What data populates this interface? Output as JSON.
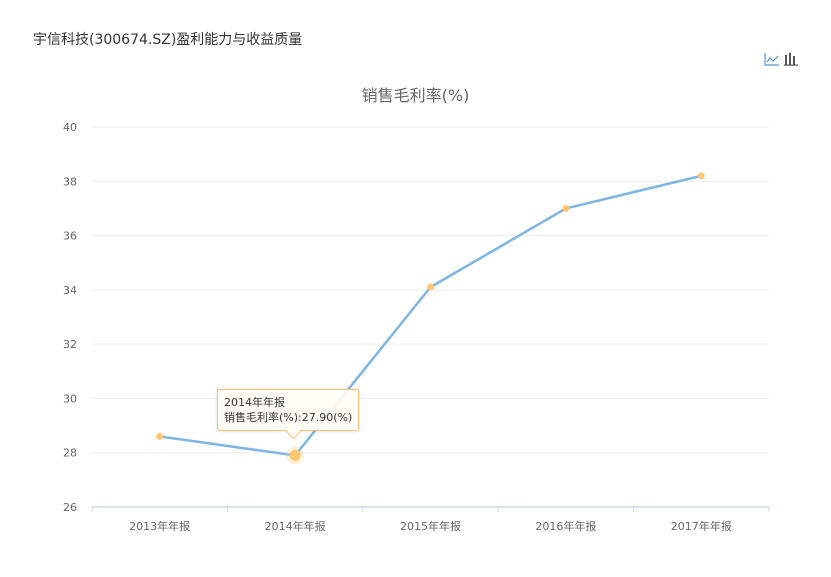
{
  "page": {
    "title": "宇信科技(300674.SZ)盈利能力与收益质量"
  },
  "toolbox": {
    "items": [
      {
        "name": "line-chart-icon",
        "label": "折线图"
      },
      {
        "name": "bar-chart-icon",
        "label": "柱状图"
      }
    ]
  },
  "colors": {
    "line": "#7db5e6",
    "marker": "#ffc870",
    "grid": "#eeeeee",
    "axis": "#cfdce8",
    "tooltip_border": "#f5c27a"
  },
  "tooltip": {
    "category": "2014年年报",
    "text": "销售毛利率(%):27.90(%)"
  },
  "chart_data": {
    "type": "line",
    "title": "销售毛利率(%)",
    "xlabel": "",
    "ylabel": "",
    "categories": [
      "2013年年报",
      "2014年年报",
      "2015年年报",
      "2016年年报",
      "2017年年报"
    ],
    "series": [
      {
        "name": "销售毛利率(%)",
        "values": [
          28.6,
          27.9,
          34.1,
          37.0,
          38.2
        ]
      }
    ],
    "ylim": [
      26,
      40
    ],
    "yticks": [
      26,
      28,
      30,
      32,
      34,
      36,
      38,
      40
    ],
    "grid": true,
    "legend": "none",
    "highlighted_point": {
      "category": "2014年年报",
      "value": 27.9
    }
  }
}
